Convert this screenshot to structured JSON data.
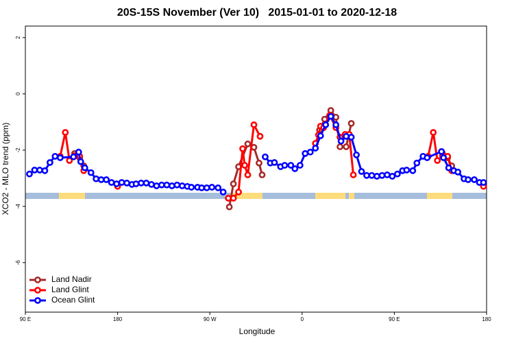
{
  "chart_data": {
    "type": "line",
    "title": "20S-15S November (Ver 10)   2015-01-01 to 2020-12-18",
    "x_label": "Longitude",
    "y_label": "XCO2 - MLO trend (ppm)",
    "xlim": [
      90,
      540
    ],
    "ylim": [
      -7.76,
      2.41
    ],
    "xticks": [
      {
        "value": 90,
        "label": "90 E"
      },
      180,
      {
        "value": 270,
        "label": "90 W"
      },
      {
        "value": 360,
        "label": "0"
      },
      {
        "value": 450,
        "label": "90 E"
      },
      {
        "value": 540,
        "label": "180"
      }
    ],
    "yticks": [
      2,
      0,
      -2,
      -4,
      -6
    ],
    "legend": "bottom-left",
    "series": [
      {
        "name": "Land Nadir",
        "color": "#a52a2a",
        "x": [
          138,
          143,
          147,
          200,
          289,
          293,
          298,
          307,
          313,
          318,
          321,
          350,
          377,
          382,
          388,
          393,
          397,
          403,
          408,
          450,
          497,
          502,
          506
        ],
        "values": [
          -2.12,
          -2.27,
          -2.56,
          null,
          -4.02,
          -3.2,
          -2.59,
          -1.78,
          -1.9,
          -2.46,
          -2.88,
          null,
          -1.29,
          -0.9,
          -0.59,
          -0.83,
          -1.88,
          -1.88,
          -1.05,
          null,
          -2.12,
          -2.27,
          -2.56
        ]
      },
      {
        "name": "Land Glint",
        "color": "#ff0000",
        "x": [
          124,
          129,
          133,
          138,
          143,
          147,
          160,
          180,
          250,
          288,
          293,
          298,
          302,
          304,
          307,
          313,
          319,
          350,
          373,
          376,
          378,
          381,
          387,
          393,
          397,
          402,
          406,
          410,
          450,
          483,
          488,
          492,
          497,
          502,
          506,
          520,
          537
        ],
        "values": [
          -2.22,
          -1.37,
          -2.37,
          -2.2,
          -2.22,
          -2.73,
          null,
          -3.29,
          null,
          -3.71,
          -3.71,
          -3.49,
          -1.95,
          -2.54,
          -2.88,
          -1.1,
          -1.51,
          null,
          -1.76,
          -1.46,
          -1.15,
          -1.2,
          -0.76,
          -1.2,
          -1.54,
          -1.44,
          -1.44,
          -2.88,
          null,
          -2.22,
          -1.37,
          -2.37,
          -2.2,
          -2.22,
          -2.73,
          null,
          -3.29
        ]
      },
      {
        "name": "Ocean Glint",
        "color": "#0000ff",
        "x": [
          94,
          99,
          104,
          109,
          114,
          119,
          124,
          137,
          142,
          144,
          148,
          154,
          159,
          164,
          169,
          174,
          179,
          184,
          189,
          194,
          198,
          203,
          208,
          213,
          218,
          223,
          228,
          233,
          238,
          243,
          248,
          252,
          258,
          262,
          267,
          272,
          278,
          283,
          300,
          324,
          329,
          333,
          339,
          343,
          349,
          353,
          358,
          363,
          368,
          373,
          378,
          383,
          388,
          393,
          398,
          403,
          408,
          413,
          418,
          423,
          428,
          433,
          438,
          443,
          448,
          453,
          458,
          462,
          468,
          472,
          478,
          482,
          496,
          498,
          503,
          508,
          512,
          518,
          522,
          528,
          533,
          537
        ],
        "values": [
          -2.85,
          -2.71,
          -2.71,
          -2.73,
          -2.44,
          -2.22,
          -2.27,
          -2.24,
          -2.07,
          -2.41,
          -2.63,
          -2.8,
          -3.02,
          -3.05,
          -3.05,
          -3.15,
          -3.2,
          -3.15,
          -3.17,
          -3.22,
          -3.2,
          -3.17,
          -3.17,
          -3.22,
          -3.27,
          -3.24,
          -3.24,
          -3.27,
          -3.24,
          -3.27,
          -3.29,
          -3.32,
          -3.32,
          -3.34,
          -3.34,
          -3.32,
          -3.34,
          -3.49,
          null,
          -2.24,
          -2.46,
          -2.44,
          -2.59,
          -2.54,
          -2.54,
          -2.66,
          -2.54,
          -2.12,
          -2.07,
          -1.93,
          -1.49,
          -1.1,
          -0.8,
          -1.1,
          -1.68,
          -1.51,
          -1.54,
          -2.17,
          -2.76,
          -2.9,
          -2.9,
          -2.93,
          -2.9,
          -2.88,
          -2.93,
          -2.85,
          -2.73,
          -2.71,
          -2.73,
          -2.46,
          -2.22,
          -2.27,
          -2.05,
          -2.27,
          -2.63,
          -2.73,
          -2.78,
          -3.02,
          -3.05,
          -3.05,
          -3.15,
          -3.15
        ]
      }
    ]
  }
}
